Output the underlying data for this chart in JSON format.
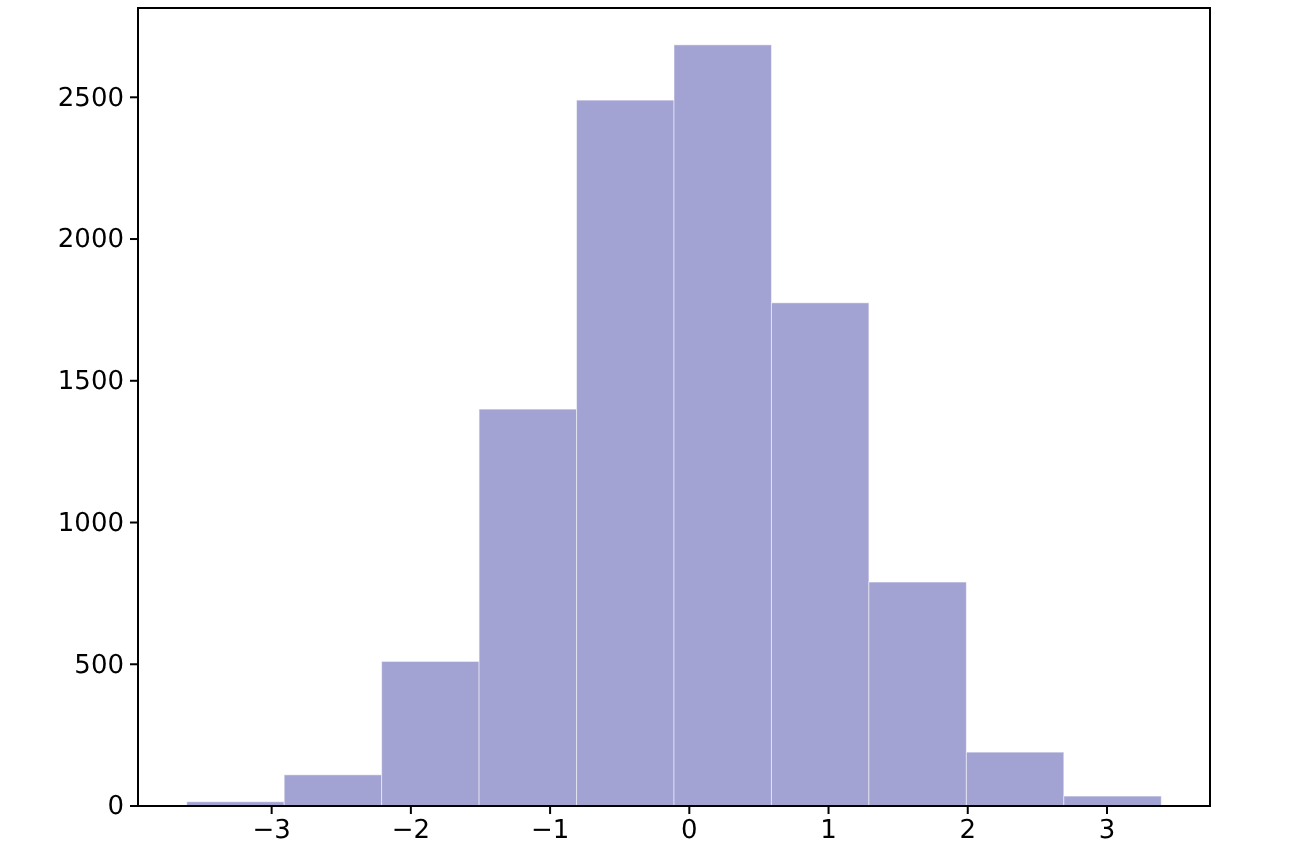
{
  "chart_data": {
    "type": "histogram",
    "bins": [
      -3.61,
      -2.91,
      -2.21,
      -1.51,
      -0.81,
      -0.11,
      0.59,
      1.29,
      1.99,
      2.69,
      3.39
    ],
    "values": [
      15,
      110,
      510,
      1400,
      2490,
      2685,
      1775,
      790,
      190,
      35
    ],
    "color": "#a2a3d2",
    "xlim": [
      -3.96,
      3.74
    ],
    "ylim": [
      0,
      2815
    ],
    "xticks": [
      {
        "value": -3,
        "label": "−3"
      },
      {
        "value": -2,
        "label": "−2"
      },
      {
        "value": -1,
        "label": "−1"
      },
      0,
      1,
      2,
      3
    ],
    "yticks": [
      0,
      500,
      1000,
      1500,
      2000,
      2500
    ],
    "grid": false
  }
}
